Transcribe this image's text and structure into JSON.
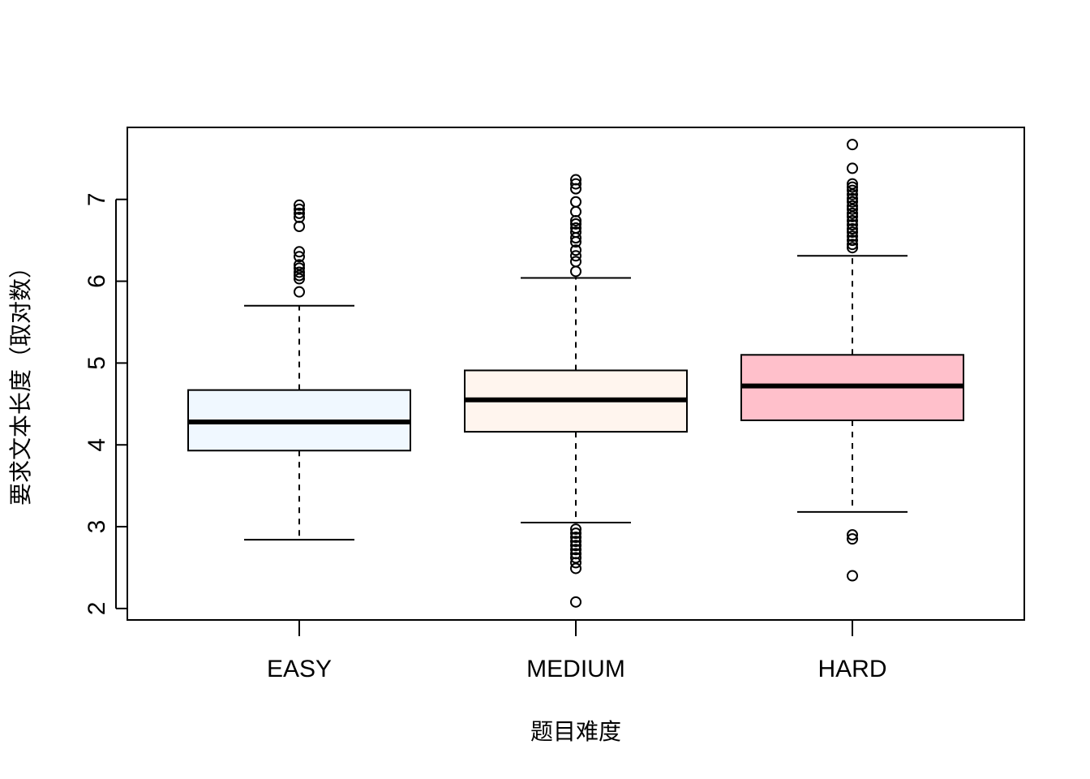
{
  "chart_data": {
    "type": "boxplot",
    "xlabel": "题目难度",
    "ylabel": "要求文本长度（取对数）",
    "ylim": [
      1.86,
      7.88
    ],
    "yticks": [
      2,
      3,
      4,
      5,
      6,
      7
    ],
    "grid": false,
    "legend": "none",
    "categories": [
      "EASY",
      "MEDIUM",
      "HARD"
    ],
    "boxes": [
      {
        "category": "EASY",
        "color": "#F0F8FF",
        "whisker_low": 2.84,
        "q1": 3.93,
        "median": 4.28,
        "q3": 4.67,
        "whisker_high": 5.7,
        "outliers": [
          5.87,
          6.03,
          6.07,
          6.11,
          6.16,
          6.2,
          6.3,
          6.36,
          6.67,
          6.78,
          6.83,
          6.88,
          6.93
        ]
      },
      {
        "category": "MEDIUM",
        "color": "#FFF5EE",
        "whisker_low": 3.05,
        "q1": 4.16,
        "median": 4.55,
        "q3": 4.91,
        "whisker_high": 6.04,
        "outliers": [
          2.08,
          2.49,
          2.56,
          2.62,
          2.67,
          2.72,
          2.77,
          2.82,
          2.87,
          2.92,
          2.97,
          6.12,
          6.24,
          6.31,
          6.38,
          6.48,
          6.53,
          6.6,
          6.65,
          6.7,
          6.74,
          6.85,
          6.97,
          7.13,
          7.19,
          7.24
        ]
      },
      {
        "category": "HARD",
        "color": "#FFC0CB",
        "whisker_low": 3.18,
        "q1": 4.3,
        "median": 4.72,
        "q3": 5.1,
        "whisker_high": 6.31,
        "outliers": [
          2.4,
          2.85,
          2.9,
          6.41,
          6.45,
          6.5,
          6.55,
          6.6,
          6.64,
          6.69,
          6.74,
          6.79,
          6.83,
          6.88,
          6.92,
          6.97,
          7.01,
          7.06,
          7.11,
          7.15,
          7.19,
          7.38,
          7.67
        ]
      }
    ]
  }
}
